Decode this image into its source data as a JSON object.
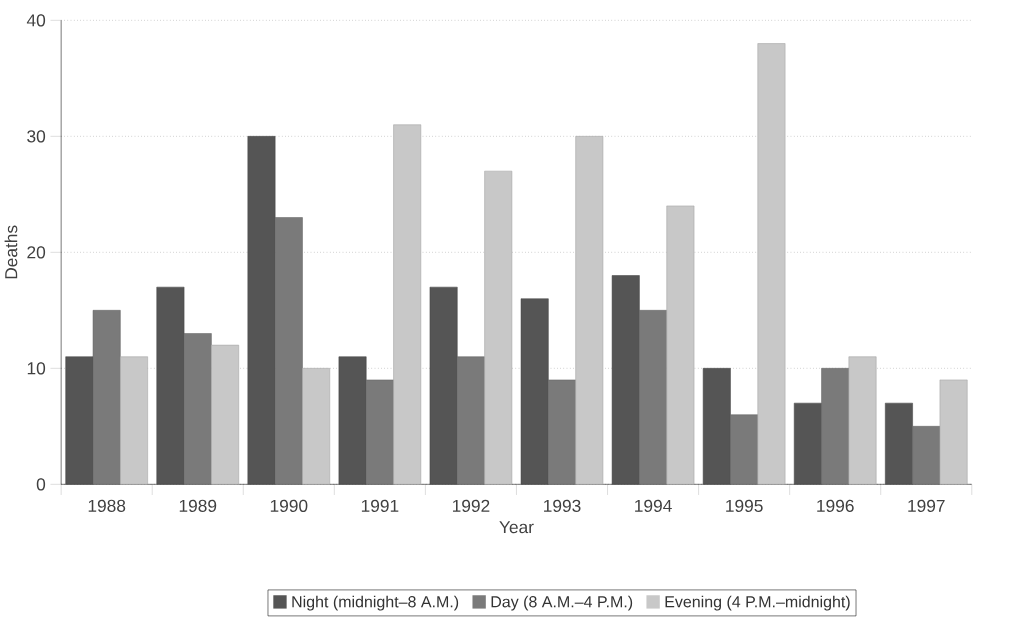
{
  "chart_data": {
    "type": "bar",
    "xlabel": "Year",
    "ylabel": "Deaths",
    "categories": [
      "1988",
      "1989",
      "1990",
      "1991",
      "1992",
      "1993",
      "1994",
      "1995",
      "1996",
      "1997"
    ],
    "series": [
      {
        "name": "Night (midnight–8 A.M.)",
        "color": "#555555",
        "values": [
          11,
          17,
          30,
          11,
          17,
          16,
          18,
          10,
          7,
          7
        ]
      },
      {
        "name": "Day (8 A.M.–4 P.M.)",
        "color": "#7a7a7a",
        "values": [
          15,
          13,
          23,
          9,
          11,
          9,
          15,
          6,
          10,
          5
        ]
      },
      {
        "name": "Evening (4 P.M.–midnight)",
        "color": "#c8c8c8",
        "values": [
          11,
          12,
          10,
          31,
          27,
          30,
          24,
          38,
          11,
          9
        ]
      }
    ],
    "ylim": [
      0,
      40
    ],
    "yticks": [
      0,
      10,
      20,
      30,
      40
    ],
    "grid": "y",
    "legend": "bottom"
  }
}
